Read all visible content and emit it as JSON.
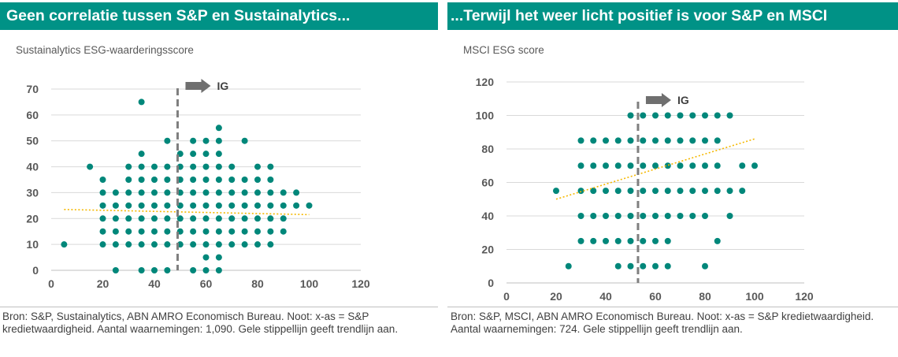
{
  "left": {
    "title": "Geen correlatie tussen S&P en Sustainalytics...",
    "subtitle": "Sustainalytics ESG-waarderingsscore",
    "source": "Bron: S&P, Sustainalytics, ABN AMRO Economisch Bureau. Noot: x-as = S&P kredietwaardigheid. Aantal waarnemingen: 1,090. Gele stippellijn geeft trendlijn aan."
  },
  "right": {
    "title": "...Terwijl het weer licht positief is voor S&P en MSCI",
    "subtitle": "MSCI ESG score",
    "source": "Bron: S&P, MSCI, ABN AMRO Economisch Bureau. Noot: x-as = S&P kredietwaardigheid. Aantal waarnemingen: 724. Gele stippellijn geeft trendlijn aan."
  },
  "colors": {
    "title_bar": "#009286",
    "points": "#00877a",
    "trendline": "#f5b800",
    "threshold": "#7f7f7f",
    "grid": "#d9d9d9"
  },
  "chart_data": [
    {
      "type": "scatter",
      "title": "Geen correlatie tussen S&P en Sustainalytics...",
      "ylabel": "Sustainalytics ESG-waarderingsscore",
      "xlim": [
        0,
        120
      ],
      "ylim": [
        0,
        70
      ],
      "xticks": [
        0,
        20,
        40,
        60,
        80,
        100,
        120
      ],
      "yticks": [
        0,
        10,
        20,
        30,
        40,
        50,
        60,
        70
      ],
      "grid": "horizontal",
      "threshold": {
        "x": 49,
        "label": "IG"
      },
      "trendline": {
        "x": [
          5,
          100
        ],
        "y": [
          23.5,
          21.5
        ]
      },
      "points": [
        [
          5,
          10
        ],
        [
          15,
          40
        ],
        [
          20,
          35
        ],
        [
          20,
          30
        ],
        [
          20,
          25
        ],
        [
          20,
          20
        ],
        [
          20,
          15
        ],
        [
          20,
          10
        ],
        [
          25,
          30
        ],
        [
          25,
          25
        ],
        [
          25,
          20
        ],
        [
          25,
          15
        ],
        [
          25,
          10
        ],
        [
          25,
          0
        ],
        [
          30,
          40
        ],
        [
          30,
          35
        ],
        [
          30,
          30
        ],
        [
          30,
          25
        ],
        [
          30,
          20
        ],
        [
          30,
          15
        ],
        [
          30,
          10
        ],
        [
          35,
          65
        ],
        [
          35,
          45
        ],
        [
          35,
          40
        ],
        [
          35,
          35
        ],
        [
          35,
          30
        ],
        [
          35,
          25
        ],
        [
          35,
          20
        ],
        [
          35,
          15
        ],
        [
          35,
          10
        ],
        [
          35,
          0
        ],
        [
          40,
          40
        ],
        [
          40,
          35
        ],
        [
          40,
          30
        ],
        [
          40,
          25
        ],
        [
          40,
          20
        ],
        [
          40,
          15
        ],
        [
          40,
          10
        ],
        [
          40,
          0
        ],
        [
          45,
          50
        ],
        [
          45,
          40
        ],
        [
          45,
          35
        ],
        [
          45,
          30
        ],
        [
          45,
          25
        ],
        [
          45,
          20
        ],
        [
          45,
          15
        ],
        [
          45,
          10
        ],
        [
          45,
          0
        ],
        [
          50,
          45
        ],
        [
          50,
          40
        ],
        [
          50,
          35
        ],
        [
          50,
          30
        ],
        [
          50,
          25
        ],
        [
          50,
          20
        ],
        [
          50,
          15
        ],
        [
          50,
          10
        ],
        [
          55,
          50
        ],
        [
          55,
          45
        ],
        [
          55,
          40
        ],
        [
          55,
          35
        ],
        [
          55,
          30
        ],
        [
          55,
          25
        ],
        [
          55,
          20
        ],
        [
          55,
          15
        ],
        [
          55,
          10
        ],
        [
          55,
          0
        ],
        [
          60,
          50
        ],
        [
          60,
          45
        ],
        [
          60,
          40
        ],
        [
          60,
          35
        ],
        [
          60,
          30
        ],
        [
          60,
          25
        ],
        [
          60,
          20
        ],
        [
          60,
          15
        ],
        [
          60,
          10
        ],
        [
          60,
          5
        ],
        [
          60,
          0
        ],
        [
          65,
          55
        ],
        [
          65,
          50
        ],
        [
          65,
          45
        ],
        [
          65,
          40
        ],
        [
          65,
          35
        ],
        [
          65,
          30
        ],
        [
          65,
          25
        ],
        [
          65,
          20
        ],
        [
          65,
          15
        ],
        [
          65,
          10
        ],
        [
          65,
          5
        ],
        [
          65,
          0
        ],
        [
          70,
          40
        ],
        [
          70,
          35
        ],
        [
          70,
          30
        ],
        [
          70,
          25
        ],
        [
          70,
          20
        ],
        [
          70,
          15
        ],
        [
          70,
          10
        ],
        [
          75,
          50
        ],
        [
          75,
          35
        ],
        [
          75,
          30
        ],
        [
          75,
          25
        ],
        [
          75,
          20
        ],
        [
          75,
          15
        ],
        [
          75,
          10
        ],
        [
          80,
          40
        ],
        [
          80,
          35
        ],
        [
          80,
          30
        ],
        [
          80,
          25
        ],
        [
          80,
          20
        ],
        [
          80,
          15
        ],
        [
          80,
          10
        ],
        [
          85,
          40
        ],
        [
          85,
          35
        ],
        [
          85,
          30
        ],
        [
          85,
          25
        ],
        [
          85,
          20
        ],
        [
          85,
          15
        ],
        [
          85,
          10
        ],
        [
          90,
          30
        ],
        [
          90,
          25
        ],
        [
          90,
          20
        ],
        [
          90,
          15
        ],
        [
          95,
          30
        ],
        [
          95,
          25
        ],
        [
          100,
          25
        ]
      ]
    },
    {
      "type": "scatter",
      "title": "...Terwijl het weer licht positief is voor S&P en MSCI",
      "ylabel": "MSCI ESG score",
      "xlim": [
        0,
        120
      ],
      "ylim": [
        0,
        120
      ],
      "xticks": [
        0,
        20,
        40,
        60,
        80,
        100,
        120
      ],
      "yticks": [
        0,
        20,
        40,
        60,
        80,
        100,
        120
      ],
      "grid": "horizontal",
      "threshold": {
        "x": 53,
        "label": "IG"
      },
      "trendline": {
        "x": [
          20,
          100
        ],
        "y": [
          50,
          86
        ]
      },
      "points": [
        [
          20,
          55
        ],
        [
          25,
          10
        ],
        [
          30,
          85
        ],
        [
          30,
          70
        ],
        [
          30,
          55
        ],
        [
          30,
          40
        ],
        [
          30,
          25
        ],
        [
          35,
          85
        ],
        [
          35,
          70
        ],
        [
          35,
          55
        ],
        [
          35,
          40
        ],
        [
          35,
          25
        ],
        [
          40,
          85
        ],
        [
          40,
          70
        ],
        [
          40,
          55
        ],
        [
          40,
          40
        ],
        [
          40,
          25
        ],
        [
          45,
          85
        ],
        [
          45,
          70
        ],
        [
          45,
          55
        ],
        [
          45,
          40
        ],
        [
          45,
          25
        ],
        [
          45,
          10
        ],
        [
          50,
          100
        ],
        [
          50,
          85
        ],
        [
          50,
          70
        ],
        [
          50,
          55
        ],
        [
          50,
          40
        ],
        [
          50,
          25
        ],
        [
          50,
          10
        ],
        [
          55,
          100
        ],
        [
          55,
          85
        ],
        [
          55,
          70
        ],
        [
          55,
          55
        ],
        [
          55,
          40
        ],
        [
          55,
          25
        ],
        [
          55,
          10
        ],
        [
          60,
          100
        ],
        [
          60,
          85
        ],
        [
          60,
          70
        ],
        [
          60,
          55
        ],
        [
          60,
          40
        ],
        [
          60,
          25
        ],
        [
          60,
          10
        ],
        [
          65,
          100
        ],
        [
          65,
          85
        ],
        [
          65,
          70
        ],
        [
          65,
          55
        ],
        [
          65,
          40
        ],
        [
          65,
          25
        ],
        [
          65,
          10
        ],
        [
          70,
          100
        ],
        [
          70,
          85
        ],
        [
          70,
          70
        ],
        [
          70,
          55
        ],
        [
          70,
          40
        ],
        [
          75,
          100
        ],
        [
          75,
          85
        ],
        [
          75,
          70
        ],
        [
          75,
          55
        ],
        [
          75,
          40
        ],
        [
          80,
          100
        ],
        [
          80,
          85
        ],
        [
          80,
          70
        ],
        [
          80,
          55
        ],
        [
          80,
          40
        ],
        [
          80,
          10
        ],
        [
          85,
          100
        ],
        [
          85,
          85
        ],
        [
          85,
          70
        ],
        [
          85,
          55
        ],
        [
          85,
          25
        ],
        [
          90,
          100
        ],
        [
          90,
          55
        ],
        [
          90,
          40
        ],
        [
          95,
          70
        ],
        [
          95,
          55
        ],
        [
          100,
          70
        ]
      ]
    }
  ]
}
